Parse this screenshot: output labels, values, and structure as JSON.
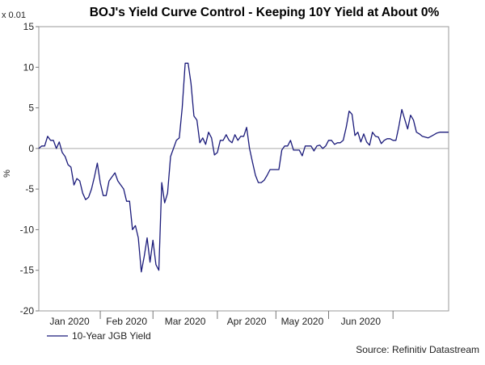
{
  "chart_data": {
    "type": "line",
    "title": "BOJ's Yield Curve Control - Keeping 10Y Yield at About 0%",
    "scale_label": "x 0.01",
    "ylabel": "%",
    "xlabel": "",
    "ylim": [
      -20,
      15
    ],
    "yticks": [
      {
        "value": 15,
        "label": "15"
      },
      {
        "value": 10,
        "label": "10"
      },
      {
        "value": 5,
        "label": "5"
      },
      {
        "value": 0,
        "label": "0"
      },
      {
        "value": -5,
        "label": "-5"
      },
      {
        "value": -10,
        "label": "-10"
      },
      {
        "value": -15,
        "label": "-15"
      },
      {
        "value": -20,
        "label": "-20"
      }
    ],
    "reference_line": 0,
    "grid": false,
    "x_day_range": [
      0,
      140
    ],
    "month_labels": [
      {
        "label": "Jan 2020",
        "start": 0,
        "end": 21
      },
      {
        "label": "Feb 2020",
        "start": 21,
        "end": 39
      },
      {
        "label": "Mar 2020",
        "start": 39,
        "end": 61
      },
      {
        "label": "Apr 2020",
        "start": 61,
        "end": 81
      },
      {
        "label": "May 2020",
        "start": 81,
        "end": 99
      },
      {
        "label": "Jun 2020",
        "start": 99,
        "end": 121
      }
    ],
    "series": [
      {
        "name": "10-Year JGB Yield",
        "color": "#1a1a7a",
        "x": [
          0,
          1,
          2,
          3,
          4,
          5,
          6,
          7,
          8,
          9,
          10,
          11,
          12,
          13,
          14,
          15,
          16,
          17,
          18,
          19,
          20,
          21,
          22,
          23,
          24,
          25,
          26,
          27,
          28,
          29,
          30,
          31,
          32,
          33,
          34,
          35,
          36,
          37,
          38,
          39,
          40,
          41,
          42,
          43,
          44,
          45,
          46,
          47,
          48,
          49,
          50,
          51,
          52,
          53,
          54,
          55,
          56,
          57,
          58,
          59,
          60,
          61,
          62,
          63,
          64,
          65,
          66,
          67,
          68,
          69,
          70,
          71,
          72,
          73,
          74,
          75,
          76,
          77,
          78,
          79,
          80,
          81,
          82,
          83,
          84,
          85,
          86,
          87,
          88,
          89,
          90,
          91,
          92,
          93,
          94,
          95,
          96,
          97,
          98,
          99,
          100,
          101,
          102,
          103,
          104,
          105,
          106,
          107,
          108,
          109,
          110,
          111,
          112,
          113,
          114,
          115,
          116,
          117,
          118,
          119,
          120,
          121,
          122,
          123,
          124,
          125,
          126,
          127,
          128,
          129,
          130,
          131,
          132,
          133,
          134,
          135,
          136,
          137,
          138,
          139,
          140
        ],
        "values": [
          0.0,
          0.3,
          0.3,
          1.5,
          1.0,
          1.0,
          0.0,
          0.8,
          -0.5,
          -1.0,
          -2.0,
          -2.3,
          -4.5,
          -3.7,
          -4.0,
          -5.5,
          -6.3,
          -6.0,
          -5.0,
          -3.5,
          -1.8,
          -4.2,
          -5.8,
          -5.8,
          -4.0,
          -3.5,
          -3.0,
          -4.0,
          -4.5,
          -5.0,
          -6.5,
          -6.5,
          -10.0,
          -9.5,
          -11.0,
          -15.2,
          -13.3,
          -11.0,
          -14.0,
          -11.3,
          -14.3,
          -15.0,
          -4.2,
          -6.7,
          -5.5,
          -1.0,
          0.0,
          1.0,
          1.3,
          5.0,
          10.5,
          10.5,
          8.0,
          4.0,
          3.5,
          0.7,
          1.3,
          0.5,
          2.0,
          1.3,
          -0.8,
          -0.5,
          1.0,
          1.0,
          1.7,
          1.0,
          0.7,
          1.7,
          1.0,
          1.5,
          1.5,
          2.6,
          0.0,
          -1.7,
          -3.3,
          -4.2,
          -4.2,
          -3.9,
          -3.3,
          -2.6,
          -2.6,
          -2.6,
          -2.6,
          -0.2,
          0.3,
          0.3,
          1.0,
          -0.2,
          -0.2,
          -0.2,
          -0.9,
          0.3,
          0.3,
          0.3,
          -0.3,
          0.3,
          0.4,
          0.0,
          0.3,
          1.0,
          1.0,
          0.5,
          0.7,
          0.7,
          1.0,
          2.6,
          4.6,
          4.2,
          1.6,
          2.0,
          0.8,
          1.8,
          0.8,
          0.4,
          2.0,
          1.5,
          1.4,
          0.6,
          1.0,
          1.2,
          1.2,
          1.0,
          1.0,
          2.7,
          4.8,
          3.6,
          2.4,
          4.1,
          3.5,
          2.0,
          1.8,
          1.5,
          1.4,
          1.3,
          1.5,
          1.7,
          1.9,
          2.0,
          2.0,
          2.0,
          2.0
        ],
        "values_note": "values shown in units of 0.01%"
      }
    ],
    "legend": {
      "position": "bottom-left",
      "label": "10-Year JGB Yield"
    },
    "source": "Source: Refinitiv Datastream"
  }
}
